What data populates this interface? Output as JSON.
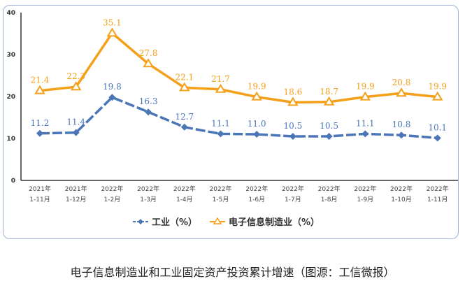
{
  "chart_data": {
    "type": "line",
    "title": "",
    "xlabel": "",
    "ylabel": "",
    "ylim": [
      0,
      40
    ],
    "yticks": [
      0,
      10,
      20,
      30,
      40
    ],
    "grid": false,
    "legend_placement": "bottom",
    "categories": [
      [
        "2021年",
        "1-11月"
      ],
      [
        "2021年",
        "1-12月"
      ],
      [
        "2022年",
        "1-2月"
      ],
      [
        "2022年",
        "1-3月"
      ],
      [
        "2022年",
        "1-4月"
      ],
      [
        "2022年",
        "1-5月"
      ],
      [
        "2022年",
        "1-6月"
      ],
      [
        "2022年",
        "1-7月"
      ],
      [
        "2022年",
        "1-8月"
      ],
      [
        "2022年",
        "1-9月"
      ],
      [
        "2022年",
        "1-10月"
      ],
      [
        "2022年",
        "1-11月"
      ]
    ],
    "series": [
      {
        "name": "工业（%）",
        "color": "#4a76b8",
        "marker": "diamond",
        "dashed": true,
        "values": [
          11.2,
          11.4,
          19.8,
          16.3,
          12.7,
          11.1,
          11.0,
          10.5,
          10.5,
          11.1,
          10.8,
          10.1
        ],
        "labels": [
          "11.2",
          "11.4",
          "19.8",
          "16.3",
          "12.7",
          "11.1",
          "11.0",
          "10.5",
          "10.5",
          "11.1",
          "10.8",
          "10.1"
        ]
      },
      {
        "name": "电子信息制造业（%）",
        "color": "#f5a01a",
        "marker": "triangle",
        "dashed": false,
        "values": [
          21.4,
          22.3,
          35.1,
          27.8,
          22.1,
          21.7,
          19.9,
          18.6,
          18.7,
          19.9,
          20.8,
          19.9
        ],
        "labels": [
          "21.4",
          "22.3",
          "35.1",
          "27.8",
          "22.1",
          "21.7",
          "19.9",
          "18.6",
          "18.7",
          "19.9",
          "20.8",
          "19.9"
        ]
      }
    ]
  },
  "caption": "电子信息制造业和工业固定资产投资累计增速（图源：工信微报）"
}
